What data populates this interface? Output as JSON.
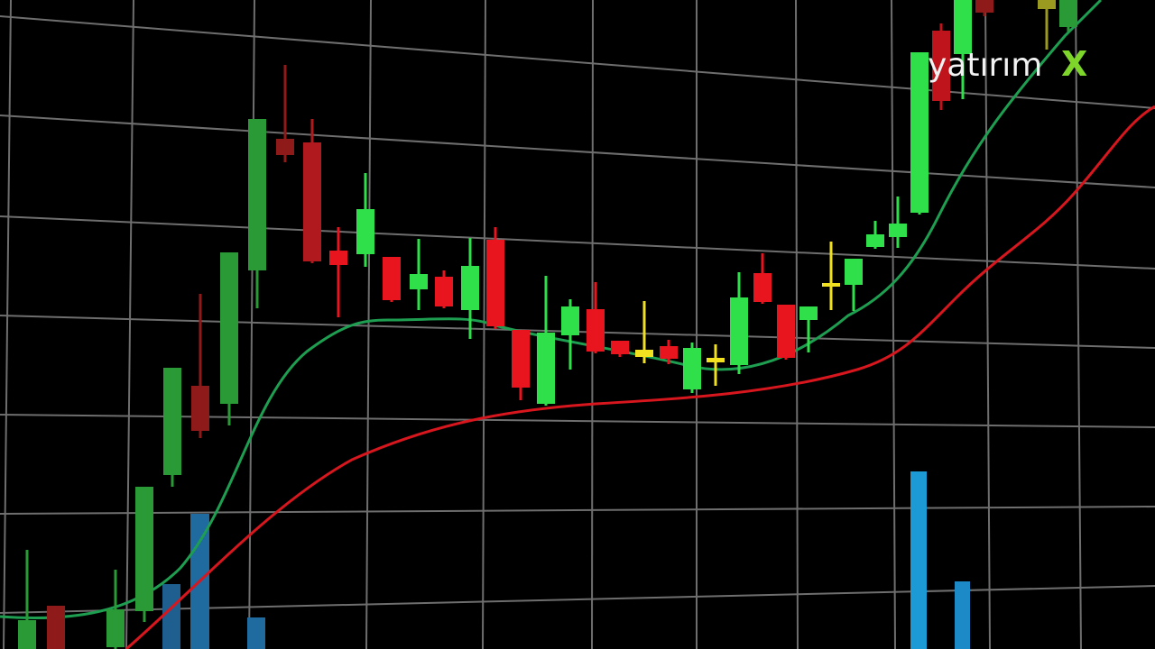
{
  "logo": {
    "text": "yatırım",
    "mark": "X"
  }
}
